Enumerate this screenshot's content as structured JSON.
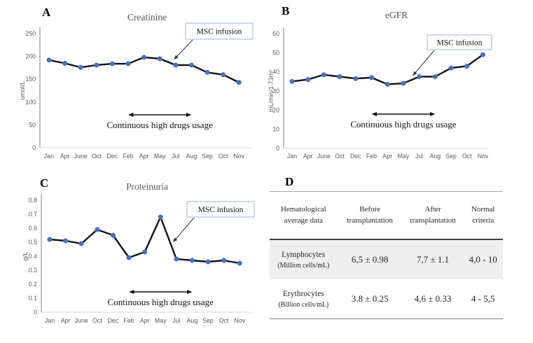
{
  "colors": {
    "marker": "#4472C4",
    "line": "#111111",
    "axis_text": "#595959",
    "annotation_border": "#9db3d8",
    "shaded_row": "#efefef"
  },
  "chart_data": [
    {
      "type": "line",
      "panel": "A",
      "title": "Creatinine",
      "ylabel": "umol/L",
      "ylim": [
        0,
        250
      ],
      "yticks": [
        0,
        50,
        100,
        150,
        200,
        250
      ],
      "grid": false,
      "categories": [
        "Jan",
        "Apr",
        "June",
        "Oct",
        "Dec",
        "Feb",
        "Apr",
        "May",
        "Jul",
        "Aug",
        "Sep",
        "Oct",
        "Nov"
      ],
      "values": [
        192,
        185,
        176,
        181,
        184,
        184,
        198,
        195,
        181,
        181,
        165,
        160,
        143
      ],
      "annotations": {
        "infusion_label": "MSC infusion",
        "infusion_at_index": 7.8,
        "range_label": "Continuous high drugs usage",
        "range_from_index": 5,
        "range_to_index": 9
      }
    },
    {
      "type": "line",
      "panel": "B",
      "title": "eGFR",
      "ylabel": "mL/min/1.73m²",
      "ylim": [
        0,
        60
      ],
      "yticks": [
        0,
        10,
        20,
        30,
        40,
        50,
        60
      ],
      "grid": false,
      "categories": [
        "Jan",
        "Apr",
        "June",
        "Oct",
        "Dec",
        "Feb",
        "Apr",
        "May",
        "Jul",
        "Aug",
        "Sep",
        "Oct",
        "Nov"
      ],
      "values": [
        35,
        36,
        38.5,
        37.5,
        36.5,
        37,
        33.5,
        34,
        37.5,
        37.5,
        42,
        43,
        49
      ],
      "annotations": {
        "infusion_label": "MSC infusion",
        "infusion_at_index": 7.5,
        "range_label": "Continuous high drugs usage",
        "range_from_index": 5,
        "range_to_index": 9
      }
    },
    {
      "type": "line",
      "panel": "C",
      "title": "Proteinuria",
      "ylabel": "g/L",
      "ylim": [
        0,
        0.8
      ],
      "yticks": [
        0,
        0.1,
        0.2,
        0.3,
        0.4,
        0.5,
        0.6,
        0.7,
        0.8
      ],
      "grid": false,
      "categories": [
        "Jan",
        "Apr",
        "June",
        "Oct",
        "Dec",
        "Feb",
        "Apr",
        "May",
        "Jul",
        "Aug",
        "Sep",
        "Oct",
        "Nov"
      ],
      "values": [
        0.52,
        0.51,
        0.49,
        0.59,
        0.55,
        0.39,
        0.43,
        0.68,
        0.38,
        0.37,
        0.36,
        0.37,
        0.35
      ],
      "annotations": {
        "infusion_label": "MSC infusion",
        "infusion_at_index": 7.7,
        "range_label": "Continuous high drugs usage",
        "range_from_index": 5,
        "range_to_index": 9
      }
    },
    {
      "type": "table",
      "panel": "D",
      "columns": [
        "Hematological average data",
        "Before transplantation",
        "After transplantation",
        "Normal criteria"
      ],
      "rows": [
        {
          "name": "Lymphocytes",
          "unit": "(Million cells/mL)",
          "before": "6,5 ± 0.98",
          "after": "7,7 ± 1.1",
          "normal": "4,0 - 10"
        },
        {
          "name": "Erythrocytes",
          "unit": "(Billion cells/mL)",
          "before": "3.8 ± 0.25",
          "after": "4,6 ± 0.33",
          "normal": "4 - 5,5"
        }
      ]
    }
  ]
}
